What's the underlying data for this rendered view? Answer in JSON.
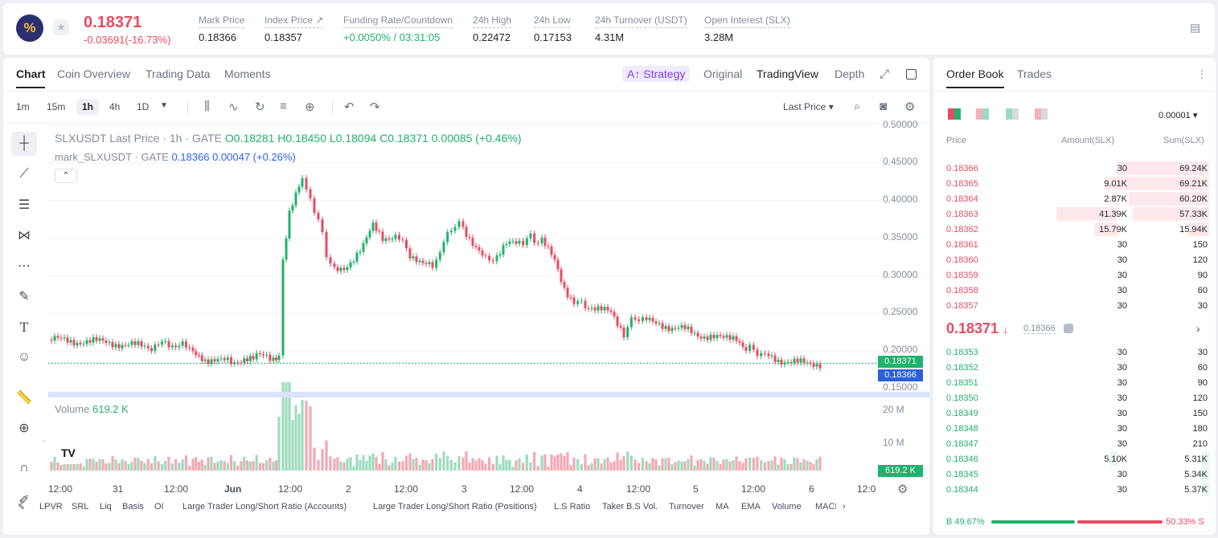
{
  "ticker": {
    "logo": "%",
    "price": "0.18371",
    "change": "-0.03691(-16.73%)",
    "stats": [
      {
        "label": "Mark Price",
        "value": "0.18366"
      },
      {
        "label": "Index Price ↗",
        "value": "0.18357"
      },
      {
        "label": "Funding Rate/Countdown",
        "value": "+0.0050% / 03:31:05"
      },
      {
        "label": "24h High",
        "value": "0.22472"
      },
      {
        "label": "24h Low",
        "value": "0.17153"
      },
      {
        "label": "24h Turnover (USDT)",
        "value": "4.31M"
      },
      {
        "label": "Open Interest (SLX)",
        "value": "3.28M"
      }
    ]
  },
  "chart": {
    "tabs": [
      "Chart",
      "Coin Overview",
      "Trading Data",
      "Moments"
    ],
    "views": [
      "Strategy",
      "Original",
      "TradingView",
      "Depth"
    ],
    "intervals": [
      "1m",
      "15m",
      "1h",
      "4h",
      "1D"
    ],
    "price_type": "Last Price",
    "legend1": {
      "symbol": "SLXUSDT Last Price · 1h · GATE",
      "o": "O0.18281",
      "h": "H0.18450",
      "l": "L0.18094",
      "c": "C0.18371",
      "chg": "0.00085 (+0.46%)"
    },
    "legend2": {
      "symbol": "mark_SLXUSDT · GATE",
      "val": "0.18366",
      "chg": "0.00047 (+0.26%)"
    },
    "volume_label": "Volume",
    "volume_val": "619.2 K",
    "y_ticks": [
      "0.50000",
      "0.45000",
      "0.40000",
      "0.35000",
      "0.30000",
      "0.25000",
      "0.20000",
      "0.15000"
    ],
    "last_tag": "0.18371",
    "mark_tag": "0.18366",
    "vol_ticks": [
      "20 M",
      "10 M"
    ],
    "vol_tag": "619.2 K",
    "x_ticks": [
      "12:00",
      "31",
      "12:00",
      "Jun",
      "12:00",
      "2",
      "12:00",
      "3",
      "12:00",
      "4",
      "12:00",
      "5",
      "12:00",
      "6",
      "12:0"
    ],
    "indicators": [
      "LPVR",
      "SRL",
      "Liq",
      "Basis",
      "OI",
      "Large Trader Long/Short Ratio (Accounts)",
      "Large Trader Long/Short Ratio (Positions)",
      "L.S Ratio",
      "Taker B.S Vol.",
      "Turnover",
      "MA",
      "EMA",
      "Volume",
      "MACL"
    ]
  },
  "order_book": {
    "tabs": [
      "Order Book",
      "Trades"
    ],
    "precision": "0.00001",
    "headers": [
      "Price",
      "Amount(SLX)",
      "Sum(SLX)"
    ],
    "asks": [
      [
        "0.18366",
        "30",
        "69.24K"
      ],
      [
        "0.18365",
        "9.01K",
        "69.21K"
      ],
      [
        "0.18364",
        "2.87K",
        "60.20K"
      ],
      [
        "0.18363",
        "41.39K",
        "57.33K"
      ],
      [
        "0.18362",
        "15.79K",
        "15.94K"
      ],
      [
        "0.18361",
        "30",
        "150"
      ],
      [
        "0.18360",
        "30",
        "120"
      ],
      [
        "0.18359",
        "30",
        "90"
      ],
      [
        "0.18358",
        "30",
        "60"
      ],
      [
        "0.18357",
        "30",
        "30"
      ]
    ],
    "mid_price": "0.18371",
    "mid_mark": "0.18366",
    "bids": [
      [
        "0.18353",
        "30",
        "30"
      ],
      [
        "0.18352",
        "30",
        "60"
      ],
      [
        "0.18351",
        "30",
        "90"
      ],
      [
        "0.18350",
        "30",
        "120"
      ],
      [
        "0.18349",
        "30",
        "150"
      ],
      [
        "0.18348",
        "30",
        "180"
      ],
      [
        "0.18347",
        "30",
        "210"
      ],
      [
        "0.18346",
        "5.10K",
        "5.31K"
      ],
      [
        "0.18345",
        "30",
        "5.34K"
      ],
      [
        "0.18344",
        "30",
        "5.37K"
      ]
    ],
    "buy_ratio": "B 49.67%",
    "sell_ratio": "50.33% S",
    "ask_colors": "#fde9ec",
    "bid_colors": "#e6f7ef"
  }
}
